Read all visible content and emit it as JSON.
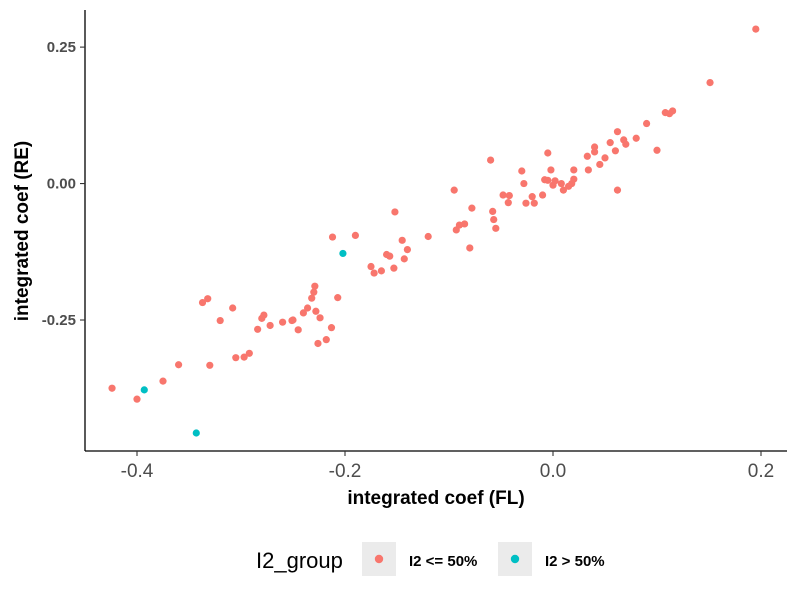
{
  "chart_data": {
    "type": "scatter",
    "title": "",
    "xlabel": "integrated coef (FL)",
    "ylabel": "integrated coef (RE)",
    "xlim": [
      -0.45,
      0.225
    ],
    "ylim": [
      -0.49,
      0.318
    ],
    "x_ticks": [
      -0.4,
      -0.2,
      0.0,
      0.2
    ],
    "x_tick_labels": [
      "-0.4",
      "-0.2",
      "0.0",
      "0.2"
    ],
    "y_ticks": [
      -0.25,
      0.0,
      0.25
    ],
    "y_tick_labels": [
      "-0.25",
      "0.00",
      "0.25"
    ],
    "grid": false,
    "legend": {
      "title": "I2_group",
      "position": "bottom",
      "entries": [
        {
          "label": "I2 <= 50%",
          "color": "#F8766D"
        },
        {
          "label": "I2 > 50%",
          "color": "#00BFC4"
        }
      ]
    },
    "series": [
      {
        "name": "I2 <= 50%",
        "color": "#F8766D",
        "points": [
          [
            -0.424,
            -0.375
          ],
          [
            -0.4,
            -0.395
          ],
          [
            -0.375,
            -0.362
          ],
          [
            -0.36,
            -0.332
          ],
          [
            -0.33,
            -0.333
          ],
          [
            -0.337,
            -0.218
          ],
          [
            -0.332,
            -0.211
          ],
          [
            -0.32,
            -0.251
          ],
          [
            -0.308,
            -0.228
          ],
          [
            -0.305,
            -0.319
          ],
          [
            -0.297,
            -0.318
          ],
          [
            -0.292,
            -0.311
          ],
          [
            -0.284,
            -0.267
          ],
          [
            -0.28,
            -0.247
          ],
          [
            -0.278,
            -0.241
          ],
          [
            -0.272,
            -0.26
          ],
          [
            -0.26,
            -0.254
          ],
          [
            -0.251,
            -0.251
          ],
          [
            -0.25,
            -0.25
          ],
          [
            -0.245,
            -0.268
          ],
          [
            -0.24,
            -0.237
          ],
          [
            -0.236,
            -0.228
          ],
          [
            -0.232,
            -0.21
          ],
          [
            -0.23,
            -0.199
          ],
          [
            -0.229,
            -0.188
          ],
          [
            -0.226,
            -0.293
          ],
          [
            -0.228,
            -0.234
          ],
          [
            -0.224,
            -0.246
          ],
          [
            -0.218,
            -0.286
          ],
          [
            -0.213,
            -0.264
          ],
          [
            -0.207,
            -0.209
          ],
          [
            -0.212,
            -0.098
          ],
          [
            -0.19,
            -0.095
          ],
          [
            -0.175,
            -0.152
          ],
          [
            -0.172,
            -0.164
          ],
          [
            -0.165,
            -0.16
          ],
          [
            -0.16,
            -0.13
          ],
          [
            -0.157,
            -0.133
          ],
          [
            -0.153,
            -0.155
          ],
          [
            -0.152,
            -0.052
          ],
          [
            -0.145,
            -0.104
          ],
          [
            -0.143,
            -0.138
          ],
          [
            -0.14,
            -0.121
          ],
          [
            -0.12,
            -0.097
          ],
          [
            -0.095,
            -0.012
          ],
          [
            -0.093,
            -0.085
          ],
          [
            -0.09,
            -0.076
          ],
          [
            -0.085,
            -0.074
          ],
          [
            -0.08,
            -0.118
          ],
          [
            -0.078,
            -0.045
          ],
          [
            -0.06,
            0.043
          ],
          [
            -0.058,
            -0.051
          ],
          [
            -0.057,
            -0.066
          ],
          [
            -0.055,
            -0.082
          ],
          [
            -0.048,
            -0.021
          ],
          [
            -0.043,
            -0.035
          ],
          [
            -0.042,
            -0.022
          ],
          [
            -0.03,
            0.023
          ],
          [
            -0.028,
            0.0
          ],
          [
            -0.026,
            -0.036
          ],
          [
            -0.02,
            -0.024
          ],
          [
            -0.018,
            -0.036
          ],
          [
            -0.01,
            -0.021
          ],
          [
            -0.008,
            0.007
          ],
          [
            -0.005,
            0.006
          ],
          [
            -0.005,
            0.056
          ],
          [
            -0.002,
            0.025
          ],
          [
            0.0,
            -0.003
          ],
          [
            0.002,
            0.005
          ],
          [
            0.008,
            0.0
          ],
          [
            0.01,
            -0.012
          ],
          [
            0.015,
            -0.005
          ],
          [
            0.018,
            0.0
          ],
          [
            0.02,
            0.025
          ],
          [
            0.02,
            0.008
          ],
          [
            0.033,
            0.05
          ],
          [
            0.034,
            0.025
          ],
          [
            0.04,
            0.067
          ],
          [
            0.04,
            0.058
          ],
          [
            0.045,
            0.035
          ],
          [
            0.05,
            0.047
          ],
          [
            0.055,
            0.075
          ],
          [
            0.06,
            0.06
          ],
          [
            0.062,
            0.095
          ],
          [
            0.068,
            0.08
          ],
          [
            0.07,
            0.072
          ],
          [
            0.08,
            0.083
          ],
          [
            0.062,
            -0.012
          ],
          [
            0.09,
            0.11
          ],
          [
            0.1,
            0.061
          ],
          [
            0.108,
            0.13
          ],
          [
            0.112,
            0.128
          ],
          [
            0.115,
            0.133
          ],
          [
            0.151,
            0.185
          ],
          [
            0.195,
            0.283
          ]
        ]
      },
      {
        "name": "I2 > 50%",
        "color": "#00BFC4",
        "points": [
          [
            -0.393,
            -0.378
          ],
          [
            -0.202,
            -0.128
          ],
          [
            -0.343,
            -0.457
          ]
        ]
      }
    ]
  }
}
